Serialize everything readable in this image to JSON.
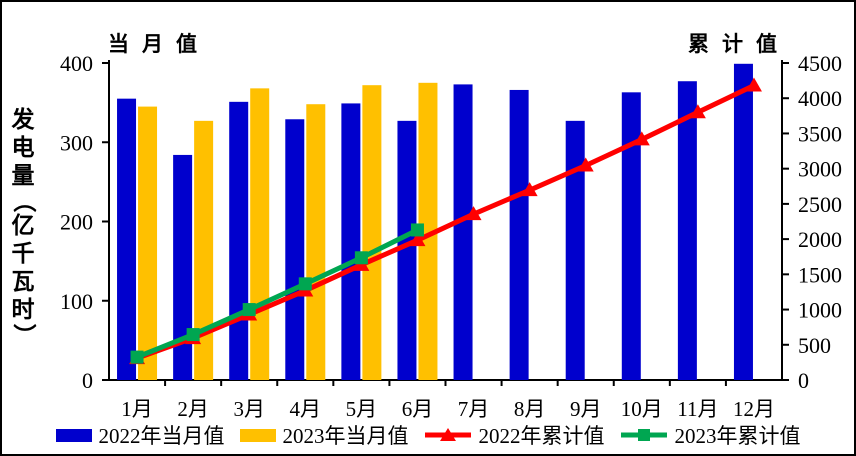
{
  "chart_data": {
    "type": "bar",
    "subtype": "dual-axis clustered bars with cumulative lines",
    "title": "",
    "ylabel": "发电量（亿千瓦时）",
    "grid": false,
    "legend_position": "bottom",
    "categories": [
      "1月",
      "2月",
      "3月",
      "4月",
      "5月",
      "6月",
      "7月",
      "8月",
      "9月",
      "10月",
      "11月",
      "12月"
    ],
    "left_axis": {
      "title": "当月值",
      "min": 0,
      "max": 400,
      "step": 100,
      "tick_labels": [
        "0",
        "100",
        "200",
        "300",
        "400"
      ]
    },
    "right_axis": {
      "title": "累计值",
      "min": 0,
      "max": 4500,
      "step": 500,
      "tick_labels": [
        "0",
        "500",
        "1000",
        "1500",
        "2000",
        "2500",
        "3000",
        "3500",
        "4000",
        "4500"
      ]
    },
    "series": [
      {
        "name": "2022年当月值",
        "type": "bar",
        "axis": "left",
        "color": "#0000CD",
        "values": [
          355,
          284,
          351,
          329,
          349,
          327,
          373,
          366,
          327,
          363,
          377,
          399
        ]
      },
      {
        "name": "2023年当月值",
        "type": "bar",
        "axis": "left",
        "color": "#FFC000",
        "values": [
          345,
          327,
          368,
          348,
          372,
          375,
          null,
          null,
          null,
          null,
          null,
          null
        ]
      },
      {
        "name": "2022年累计值",
        "type": "line",
        "marker": "triangle",
        "axis": "right",
        "color": "#FF0000",
        "values": [
          310,
          595,
          930,
          1270,
          1635,
          1985,
          2355,
          2695,
          3045,
          3415,
          3800,
          4180
        ]
      },
      {
        "name": "2023年累计值",
        "type": "line",
        "marker": "square",
        "axis": "right",
        "color": "#00A651",
        "values": [
          325,
          645,
          1000,
          1365,
          1735,
          2130,
          null,
          null,
          null,
          null,
          null,
          null
        ]
      }
    ],
    "axis_color": "#000000",
    "background": "#FFFFFF"
  }
}
